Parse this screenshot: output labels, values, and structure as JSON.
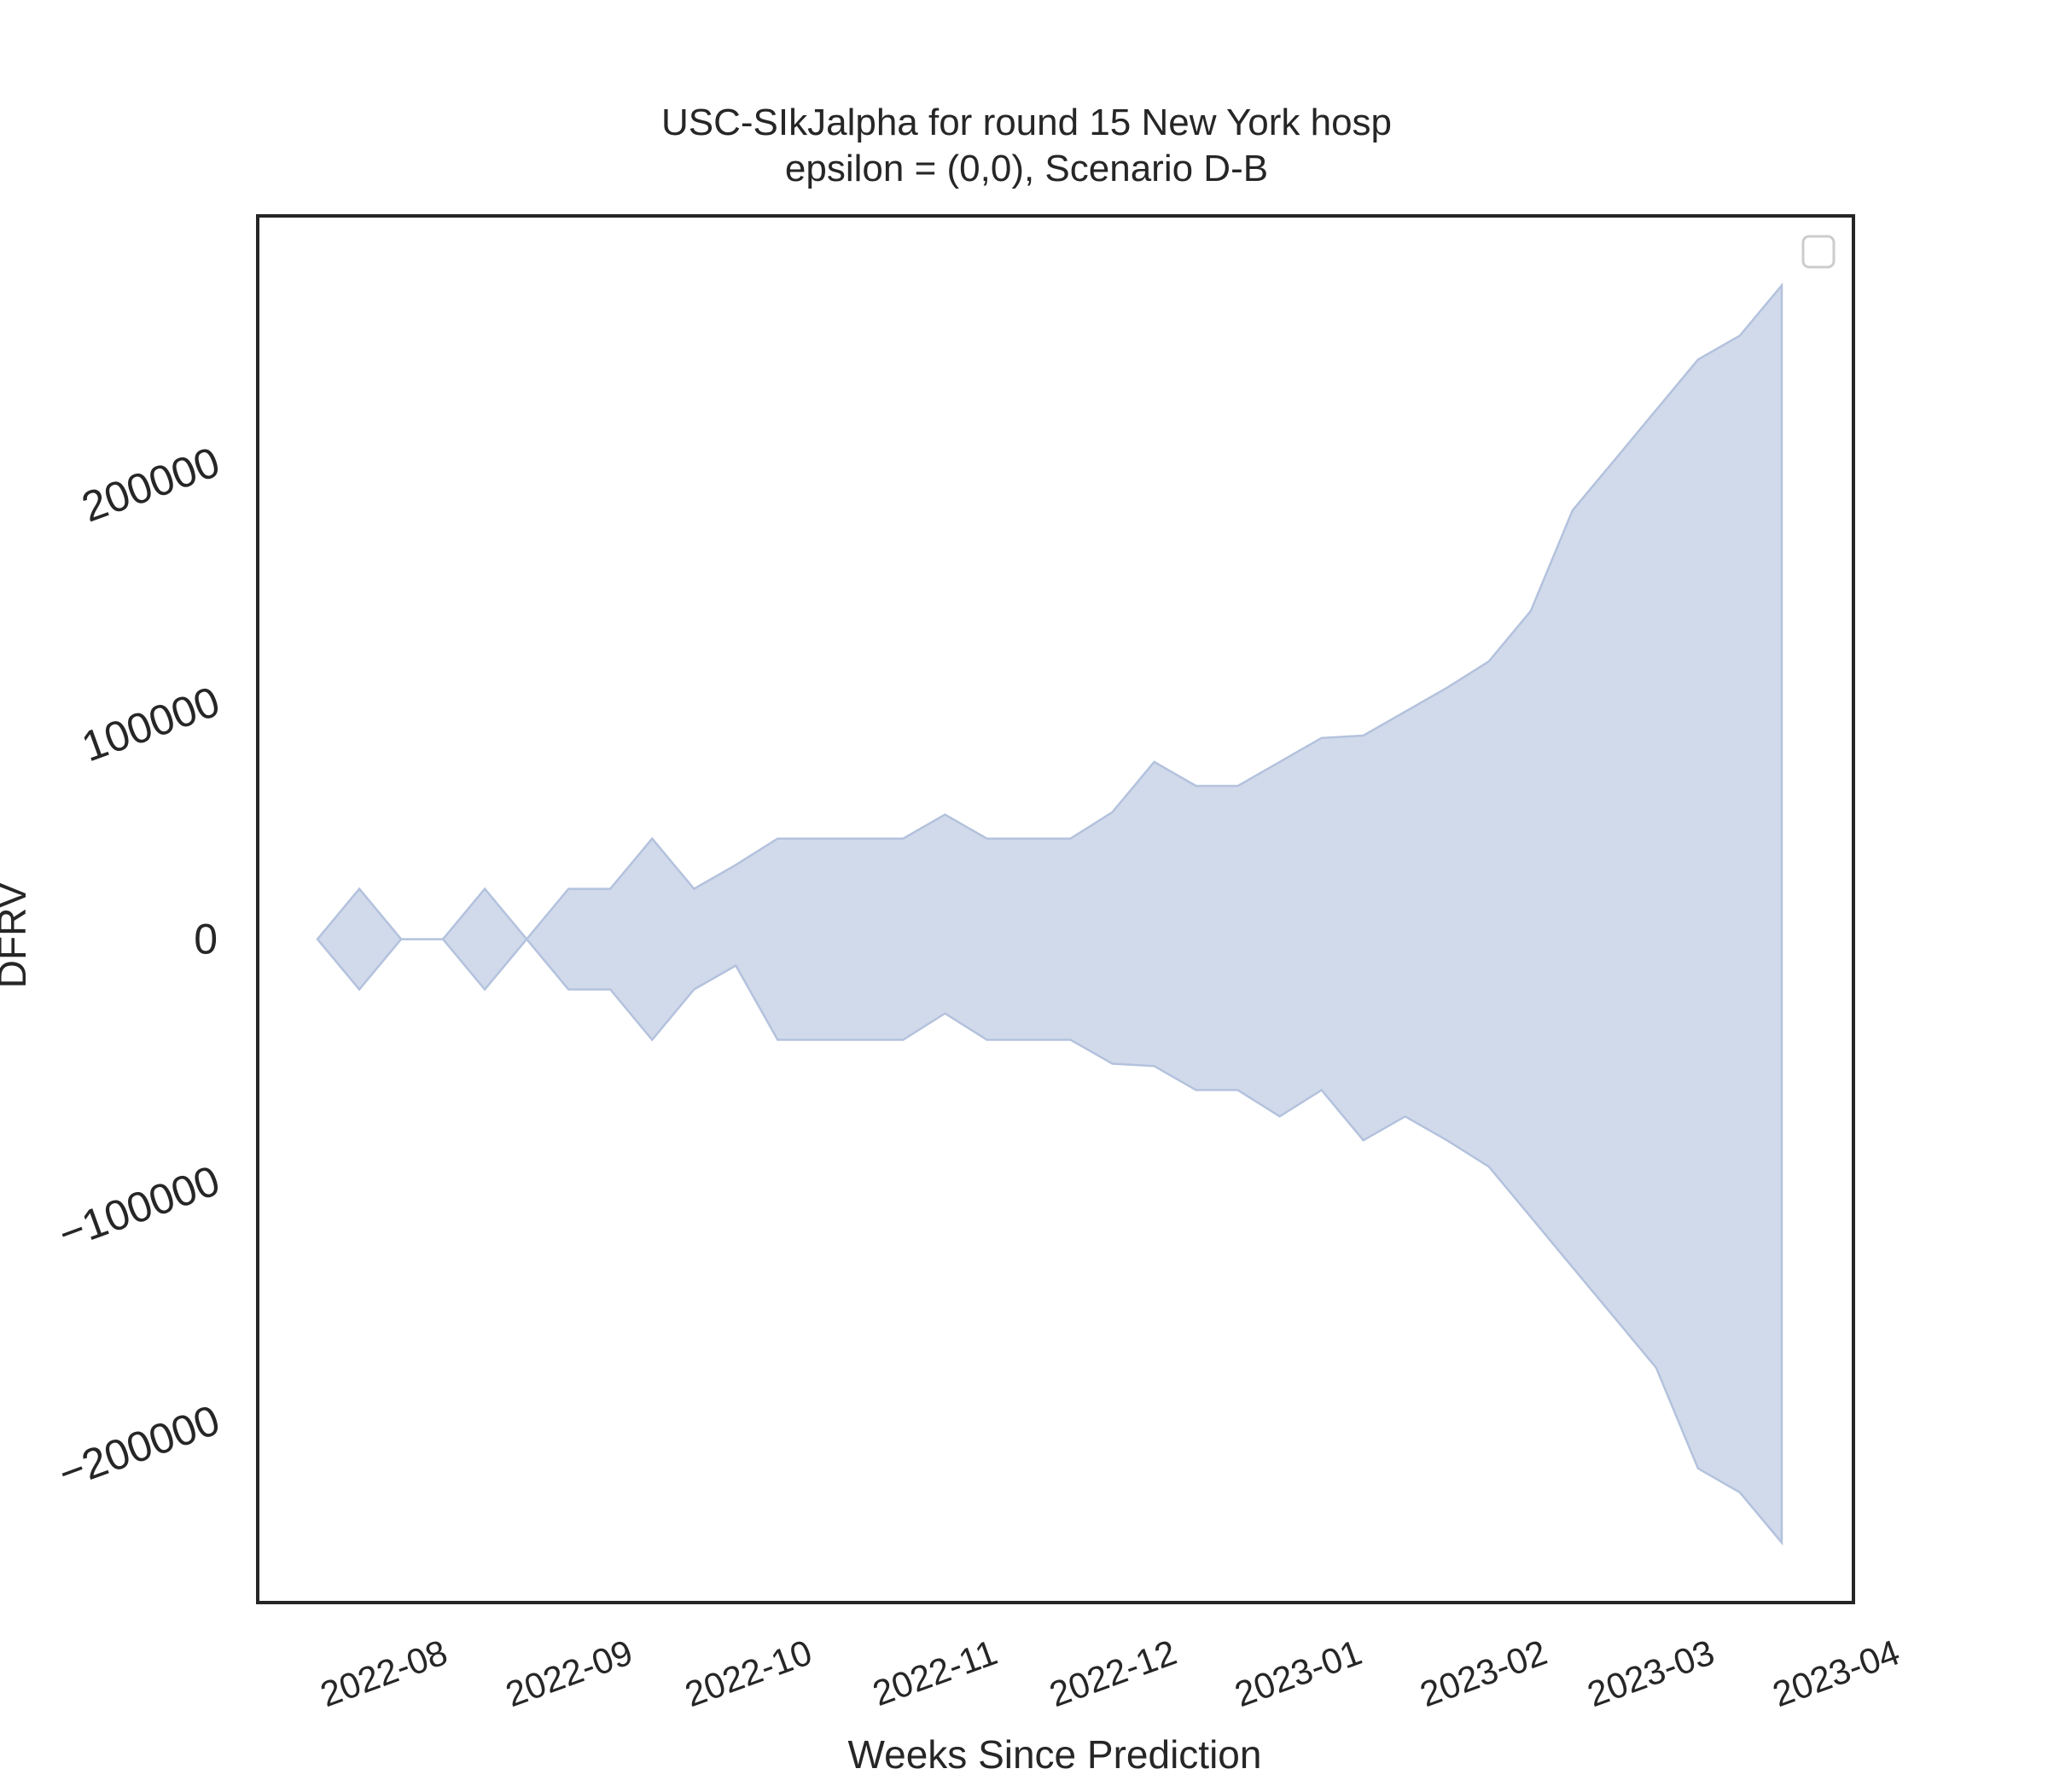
{
  "chart_data": {
    "type": "area",
    "title": "USC-SIkJalpha for round 15 New York hosp",
    "subtitle": "epsilon = (0,0), Scenario D-B",
    "xlabel": "Weeks Since Prediction",
    "ylabel": "DFRV",
    "x_ticks": [
      "2022-08",
      "2022-09",
      "2022-10",
      "2022-11",
      "2022-12",
      "2023-01",
      "2023-02",
      "2023-03",
      "2023-04"
    ],
    "y_ticks": [
      200000,
      100000,
      0,
      -100000,
      -200000
    ],
    "y_tick_labels": [
      "200000",
      "100000",
      "0",
      "−100000",
      "−200000"
    ],
    "xlim": [
      "2022-07-13",
      "2023-04-06"
    ],
    "ylim": [
      -277000,
      302000
    ],
    "grid": false,
    "legend": "top-right (empty)",
    "colors": {
      "fill": "#d1daea",
      "edge": "#b3c2dd",
      "frame": "#262626"
    },
    "series": [
      {
        "x": [
          "2022-07-23",
          "2022-07-30",
          "2022-08-06",
          "2022-08-13",
          "2022-08-20",
          "2022-08-27",
          "2022-09-03",
          "2022-09-10",
          "2022-09-17",
          "2022-09-24",
          "2022-10-01",
          "2022-10-08",
          "2022-10-15",
          "2022-10-22",
          "2022-10-29",
          "2022-11-05",
          "2022-11-12",
          "2022-11-19",
          "2022-11-26",
          "2022-12-03",
          "2022-12-10",
          "2022-12-17",
          "2022-12-24",
          "2022-12-31",
          "2023-01-07",
          "2023-01-14",
          "2023-01-21",
          "2023-01-28",
          "2023-02-04",
          "2023-02-11",
          "2023-02-18",
          "2023-02-25",
          "2023-03-04",
          "2023-03-11",
          "2023-03-18"
        ],
        "upper": [
          0,
          21000,
          0,
          0,
          21000,
          0,
          21000,
          21000,
          42000,
          21000,
          31000,
          42000,
          42000,
          42000,
          42000,
          52000,
          42000,
          42000,
          42000,
          53000,
          74000,
          64000,
          64000,
          74000,
          84000,
          85000,
          95000,
          105000,
          116000,
          137000,
          179000,
          200000,
          221000,
          242000,
          252000
        ],
        "lower": [
          0,
          -21000,
          0,
          0,
          -21000,
          0,
          -21000,
          -21000,
          -42000,
          -21000,
          -11000,
          -42000,
          -42000,
          -42000,
          -42000,
          -31000,
          -42000,
          -42000,
          -42000,
          -52000,
          -53000,
          -63000,
          -63000,
          -74000,
          -63000,
          -84000,
          -74000,
          -84000,
          -95000,
          -116000,
          -137000,
          -158000,
          -179000,
          -221000,
          -231000
        ]
      }
    ],
    "last_point": {
      "x": "2023-03-25",
      "upper": 273000,
      "lower": -252000
    }
  }
}
